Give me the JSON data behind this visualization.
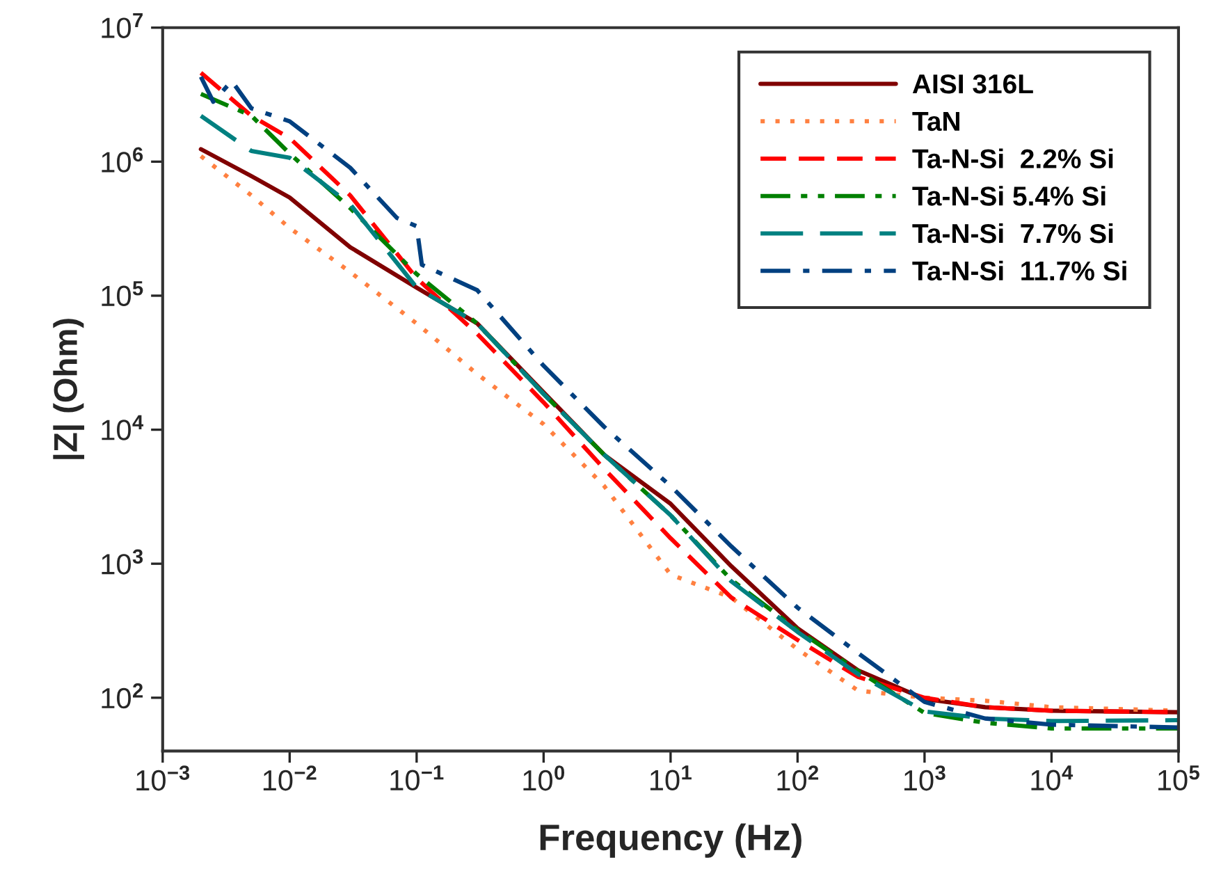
{
  "chart_data": {
    "type": "line",
    "xlabel": "Frequency (Hz)",
    "ylabel": "|Z| (Ohm)",
    "log": "xy",
    "grid": false,
    "legend": "top right",
    "marker": "none",
    "x": [
      0.002,
      0.005,
      0.01,
      0.03,
      0.1,
      0.3,
      1,
      3,
      10,
      30,
      100,
      300,
      1000,
      3000,
      10000,
      100000
    ],
    "xlim": [
      0.001,
      100000
    ],
    "ylim": [
      40,
      10000000
    ],
    "xticks": [
      {
        "value": 0.001,
        "label": "10$^{−3}$"
      },
      {
        "value": 0.01,
        "label": "10$^{−2}$"
      },
      {
        "value": 0.1,
        "label": "10$^{−1}$"
      },
      {
        "value": 1,
        "label": "10$^{0}$"
      },
      {
        "value": 10,
        "label": "10$^{1}$"
      },
      {
        "value": 100,
        "label": "10$^{2}$"
      },
      {
        "value": 1000,
        "label": "10$^{3}$"
      },
      {
        "value": 10000,
        "label": "10$^{4}$"
      },
      {
        "value": 100000,
        "label": "10$^{5}$"
      }
    ],
    "yticks": [
      {
        "value": 100,
        "label": "10$^{2}$"
      },
      {
        "value": 1000,
        "label": "10$^{3}$"
      },
      {
        "value": 10000,
        "label": "10$^{4}$"
      },
      {
        "value": 100000,
        "label": "10$^{5}$"
      },
      {
        "value": 1000000,
        "label": "10$^{6}$"
      },
      {
        "value": 10000000,
        "label": "10$^{7}$"
      }
    ],
    "series": [
      {
        "name": "AISI 316L",
        "color": "#800000",
        "line_style": "solid",
        "values": [
          1240000,
          780000,
          540000,
          230000,
          115000,
          62000,
          19000,
          6500,
          2800,
          960,
          330,
          160,
          98,
          85,
          80,
          78
        ]
      },
      {
        "name": "TaN",
        "color": "#ff8040",
        "line_style": "dotted",
        "values": [
          1100000,
          560000,
          320000,
          150000,
          62000,
          26000,
          11000,
          3800,
          830,
          560,
          230,
          113,
          100,
          95,
          85,
          80
        ]
      },
      {
        "name": "Ta-N-Si  2.2% Si",
        "color": "#ff0000",
        "line_style": "dashed",
        "values": [
          4600000,
          2200000,
          1500000,
          560000,
          135000,
          52000,
          16000,
          5100,
          1550,
          560,
          270,
          143,
          100,
          85,
          80,
          78
        ]
      },
      {
        "name": "Ta-N-Si 5.4% Si",
        "color": "#008000",
        "line_style": "dashdotdot",
        "values": [
          3200000,
          2200000,
          1150000,
          450000,
          145000,
          62000,
          18500,
          6500,
          2300,
          760,
          320,
          158,
          77,
          65,
          59,
          59
        ]
      },
      {
        "name": "Ta-N-Si  7.7% Si",
        "color": "#008080",
        "line_style": "longdash",
        "values": [
          2200000,
          1200000,
          1070000,
          480000,
          115000,
          62000,
          18500,
          6500,
          2300,
          740,
          310,
          150,
          79,
          70,
          67,
          68
        ]
      },
      {
        "name": "Ta-N-Si  11.7% Si",
        "color": "#004080",
        "line_style": "dashdot",
        "x": [
          0.002,
          0.0025,
          0.0035,
          0.005,
          0.01,
          0.03,
          0.07,
          0.1,
          0.11,
          0.3,
          1,
          3,
          10,
          30,
          100,
          300,
          1000,
          3000,
          10000,
          100000
        ],
        "values": [
          4300000,
          2800000,
          4000000,
          2500000,
          2000000,
          900000,
          380000,
          330000,
          170000,
          110000,
          30000,
          10500,
          3800,
          1350,
          470,
          215,
          93,
          70,
          63,
          60
        ]
      }
    ]
  }
}
